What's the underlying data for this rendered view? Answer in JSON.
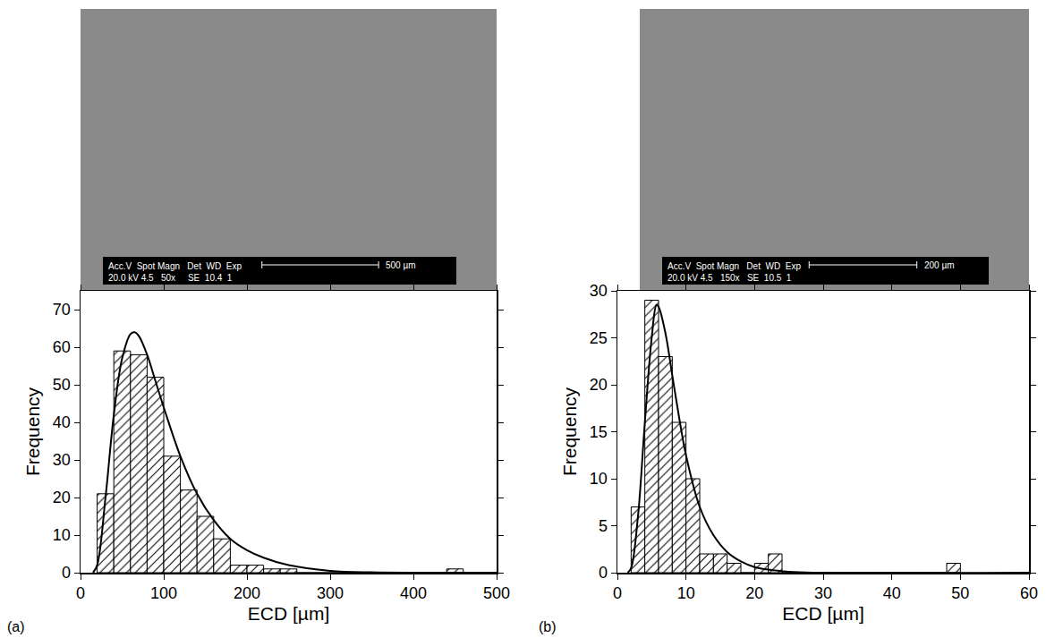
{
  "chart_data": [
    {
      "type": "histogram",
      "panel": "(a)",
      "micrograph": {
        "info": [
          "Acc.V  Spot Magn   Det  WD  Exp",
          "20.0 kV 4.5   50x     SE  10.4  1"
        ],
        "scale_bar": "500 µm"
      },
      "x_label": "ECD [µm]",
      "y_label": "Frequency",
      "bins": [
        20,
        40,
        60,
        80,
        100,
        120,
        140,
        160,
        180,
        200,
        220,
        240,
        260,
        280,
        300,
        320,
        340,
        360,
        380,
        400,
        420,
        440,
        460
      ],
      "values": [
        21,
        59,
        58,
        52,
        31,
        22,
        15,
        9,
        2,
        2,
        1,
        1,
        0,
        0,
        0,
        0,
        0,
        0,
        0,
        0,
        0,
        1
      ],
      "color": "#000000",
      "fit": {
        "x": [
          15,
          20,
          30,
          40,
          50,
          60,
          65,
          70,
          80,
          90,
          100,
          120,
          140,
          160,
          180,
          200,
          220,
          250,
          300,
          350,
          400,
          500
        ],
        "values": [
          0,
          2,
          20,
          42,
          57,
          63.5,
          64,
          63,
          58,
          51,
          44,
          31,
          21,
          14,
          9,
          6,
          4,
          2,
          0.5,
          0.1,
          0,
          0
        ]
      },
      "xlim": [
        0,
        500
      ],
      "xticks": [
        0,
        100,
        200,
        300,
        400,
        500
      ],
      "ylim": [
        0,
        75
      ],
      "yticks": [
        0,
        10,
        20,
        30,
        40,
        50,
        60,
        70
      ],
      "grid": false
    },
    {
      "type": "histogram",
      "panel": "(b)",
      "micrograph": {
        "info": [
          "Acc.V  Spot Magn   Det  WD  Exp",
          "20.0 kV 4.5   150x   SE  10.5  1"
        ],
        "scale_bar": "200 µm"
      },
      "x_label": "ECD [µm]",
      "y_label": "Frequency",
      "bins": [
        2,
        4,
        6,
        8,
        10,
        12,
        14,
        16,
        18,
        20,
        22,
        24,
        26,
        28,
        30,
        32,
        34,
        36,
        38,
        40,
        42,
        44,
        46,
        48,
        50
      ],
      "values": [
        7,
        29,
        23,
        16,
        10,
        2,
        2,
        1,
        0,
        1,
        2,
        0,
        0,
        0,
        0,
        0,
        0,
        0,
        0,
        0,
        0,
        0,
        0,
        1
      ],
      "color": "#000000",
      "fit": {
        "x": [
          1.5,
          2,
          3,
          4,
          5,
          5.7,
          6,
          7,
          8,
          9,
          10,
          12,
          14,
          16,
          18,
          20,
          25,
          30,
          60
        ],
        "values": [
          0,
          0.5,
          6,
          16,
          25,
          28.5,
          28.3,
          25.5,
          21,
          16.5,
          12.5,
          7,
          4,
          2.2,
          1.2,
          0.6,
          0.1,
          0,
          0
        ]
      },
      "xlim": [
        0,
        60
      ],
      "xticks": [
        0,
        10,
        20,
        30,
        40,
        50,
        60
      ],
      "ylim": [
        0,
        30
      ],
      "yticks": [
        0,
        5,
        10,
        15,
        20,
        25,
        30
      ],
      "grid": false
    }
  ]
}
